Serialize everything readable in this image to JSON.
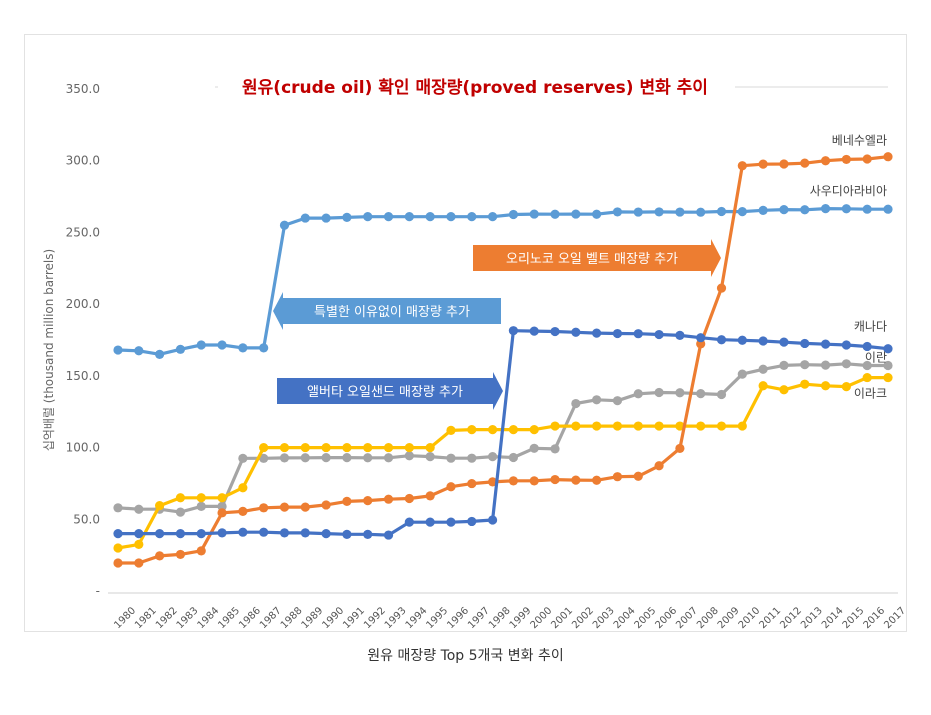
{
  "caption": "원유 매장량 Top 5개국 변화 추이",
  "chart_data": {
    "type": "line",
    "title": "원유(crude oil) 확인 매장량(proved reserves) 변화 추이",
    "ylabel": "십억배럴 (thousand million barrels)",
    "ylim": [
      0,
      350
    ],
    "yticks": [
      "-",
      "50.0",
      "100.0",
      "150.0",
      "200.0",
      "250.0",
      "300.0",
      "350.0"
    ],
    "grid": false,
    "x": [
      "1980",
      "1981",
      "1982",
      "1983",
      "1984",
      "1985",
      "1986",
      "1987",
      "1988",
      "1989",
      "1990",
      "1991",
      "1992",
      "1993",
      "1994",
      "1995",
      "1996",
      "1997",
      "1998",
      "1999",
      "2000",
      "2001",
      "2002",
      "2003",
      "2004",
      "2005",
      "2006",
      "2007",
      "2008",
      "2009",
      "2010",
      "2011",
      "2012",
      "2013",
      "2014",
      "2015",
      "2016",
      "2017"
    ],
    "series": [
      {
        "name": "베네수엘라",
        "color": "#ed7d31",
        "values": [
          19.5,
          19.5,
          24.5,
          25.5,
          28,
          54.5,
          55.5,
          58,
          58.5,
          58.5,
          60,
          62.5,
          63,
          64,
          64.5,
          66.3,
          72.7,
          74.9,
          76.1,
          76.8,
          76.8,
          77.7,
          77.3,
          77.2,
          79.7,
          80.0,
          87.3,
          99.4,
          172.3,
          211.2,
          296.5,
          297.6,
          297.7,
          298.3,
          300.0,
          300.9,
          301.2,
          302.8
        ]
      },
      {
        "name": "사우디아라비아",
        "color": "#5b9bd5",
        "values": [
          168,
          167.5,
          165,
          168.5,
          171.5,
          171.5,
          169.5,
          169.5,
          255,
          260,
          260,
          260.5,
          261,
          261,
          261,
          261,
          261,
          261,
          261,
          262.5,
          262.8,
          262.7,
          262.8,
          262.7,
          264.3,
          264.2,
          264.3,
          264.2,
          264.1,
          264.6,
          264.5,
          265.4,
          265.9,
          265.8,
          266.6,
          266.5,
          266.2,
          266.2
        ]
      },
      {
        "name": "캐나다",
        "color": "#4472c4",
        "values": [
          40,
          40,
          40,
          40,
          40,
          40.5,
          41,
          41,
          40.5,
          40.5,
          40,
          39.5,
          39.5,
          39,
          48,
          48,
          48,
          48.5,
          49.5,
          181.5,
          181.2,
          180.9,
          180.4,
          179.8,
          179.5,
          179.4,
          178.8,
          178.2,
          176.6,
          175.2,
          174.8,
          174.3,
          173.5,
          172.6,
          172.1,
          171.5,
          170.5,
          168.9
        ]
      },
      {
        "name": "이란",
        "color": "#a5a5a5",
        "values": [
          58,
          57,
          57,
          55,
          59,
          59,
          92.5,
          92.5,
          92.8,
          92.9,
          93,
          93,
          92.9,
          92.9,
          94.3,
          93.7,
          92.6,
          92.6,
          93.7,
          93.1,
          99.5,
          99.1,
          130.7,
          133.3,
          132.7,
          137.5,
          138.4,
          138.2,
          137.6,
          137.0,
          151.2,
          154.6,
          157.3,
          157.8,
          157.5,
          158.4,
          157.2,
          157.2
        ]
      },
      {
        "name": "이라크",
        "color": "#ffc000",
        "values": [
          30,
          32.5,
          59.5,
          65,
          65,
          65,
          72,
          100,
          100,
          100,
          100,
          100,
          100,
          100,
          100,
          100,
          112,
          112.5,
          112.5,
          112.5,
          112.5,
          115,
          115,
          115,
          115,
          115,
          115,
          115,
          115,
          115,
          115,
          143.1,
          140.3,
          144.2,
          143.1,
          142.5,
          148.8,
          148.8
        ]
      }
    ],
    "annotations": [
      {
        "text": "특별한 이유없이 매장량 추가",
        "color": "#5b9bd5",
        "arrow": "left"
      },
      {
        "text": "앨버타 오일샌드 매장량 추가",
        "color": "#4472c4",
        "arrow": "right"
      },
      {
        "text": "오리노코 오일 벨트 매장량 추가",
        "color": "#ed7d31",
        "arrow": "right"
      }
    ]
  }
}
